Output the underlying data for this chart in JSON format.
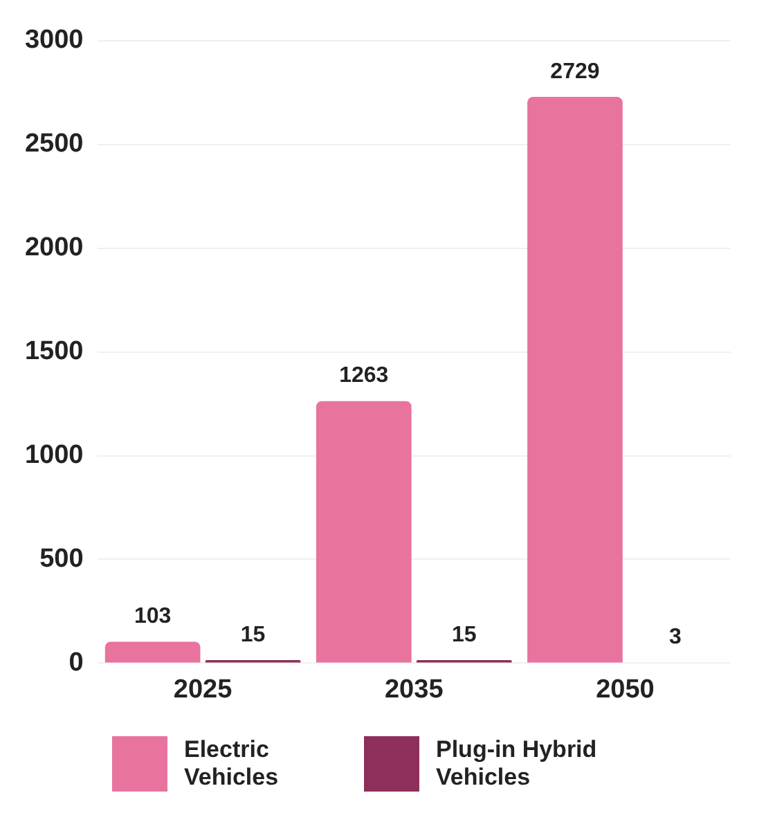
{
  "chart_data": {
    "type": "bar",
    "categories": [
      "2025",
      "2035",
      "2050"
    ],
    "series": [
      {
        "name": "Electric Vehicles",
        "color": "#e8739f",
        "values": [
          103,
          1263,
          2729
        ]
      },
      {
        "name": "Plug-in Hybrid Vehicles",
        "color": "#8e2f5a",
        "values": [
          15,
          15,
          3
        ]
      }
    ],
    "ylim": [
      0,
      3000
    ],
    "yticks": [
      0,
      500,
      1000,
      1500,
      2000,
      2500,
      3000
    ],
    "grid": "y",
    "legend": "bottom",
    "data_labels": true
  }
}
